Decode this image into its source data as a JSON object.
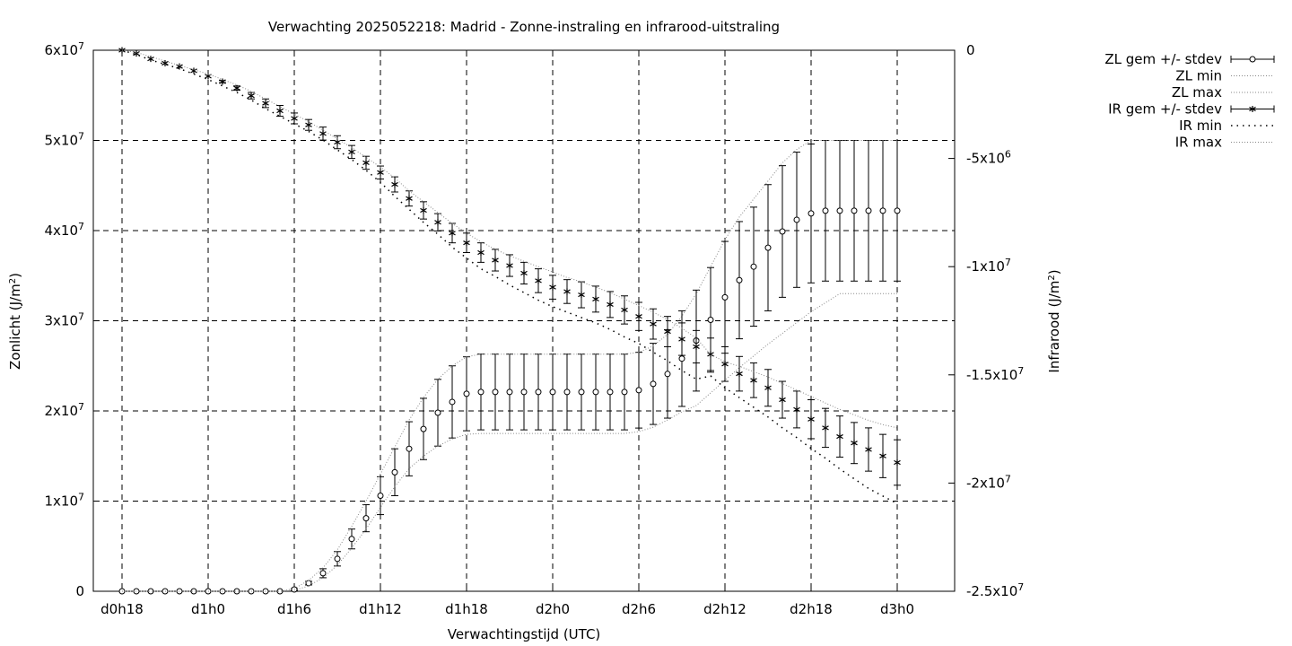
{
  "chart_data": {
    "type": "line",
    "title": "Verwachting 2025052218: Madrid - Zonne-instraling en infrarood-uitstraling",
    "xlabel": "Verwachtingstijd (UTC)",
    "ylabel_left_base": "Zonlicht (J/m",
    "ylabel_left_sup": "2",
    "ylabel_left_end": ")",
    "ylabel_right_base": "Infrarood (J/m",
    "ylabel_right_sup": "2",
    "ylabel_right_end": ")",
    "x_range_hours": [
      -2,
      58
    ],
    "x_ticks": [
      {
        "value": 0,
        "label": "d0h18"
      },
      {
        "value": 6,
        "label": "d1h0"
      },
      {
        "value": 12,
        "label": "d1h6"
      },
      {
        "value": 18,
        "label": "d1h12"
      },
      {
        "value": 24,
        "label": "d1h18"
      },
      {
        "value": 30,
        "label": "d2h0"
      },
      {
        "value": 36,
        "label": "d2h6"
      },
      {
        "value": 42,
        "label": "d2h12"
      },
      {
        "value": 48,
        "label": "d2h18"
      },
      {
        "value": 54,
        "label": "d3h0"
      }
    ],
    "y_left_range": [
      0,
      60000000
    ],
    "y_left_ticks": [
      {
        "value": 0,
        "base": "0",
        "exp": ""
      },
      {
        "value": 10000000,
        "base": "1x10",
        "exp": "7"
      },
      {
        "value": 20000000,
        "base": "2x10",
        "exp": "7"
      },
      {
        "value": 30000000,
        "base": "3x10",
        "exp": "7"
      },
      {
        "value": 40000000,
        "base": "4x10",
        "exp": "7"
      },
      {
        "value": 50000000,
        "base": "5x10",
        "exp": "7"
      },
      {
        "value": 60000000,
        "base": "6x10",
        "exp": "7"
      }
    ],
    "y_right_range": [
      -25000000,
      0
    ],
    "y_right_ticks": [
      {
        "value": 0,
        "base": "0",
        "exp": ""
      },
      {
        "value": -5000000,
        "base": "-5x10",
        "exp": "6"
      },
      {
        "value": -10000000,
        "base": "-1x10",
        "exp": "7"
      },
      {
        "value": -15000000,
        "base": "-1.5x10",
        "exp": "7"
      },
      {
        "value": -20000000,
        "base": "-2x10",
        "exp": "7"
      },
      {
        "value": -25000000,
        "base": "-2.5x10",
        "exp": "7"
      }
    ],
    "grid": true,
    "legend_position": "outside-top-right",
    "x_hours": [
      0,
      1,
      2,
      3,
      4,
      5,
      6,
      7,
      8,
      9,
      10,
      11,
      12,
      13,
      14,
      15,
      16,
      17,
      18,
      19,
      20,
      21,
      22,
      23,
      24,
      25,
      26,
      27,
      28,
      29,
      30,
      31,
      32,
      33,
      34,
      35,
      36,
      37,
      38,
      39,
      40,
      41,
      42,
      43,
      44,
      45,
      46,
      47,
      48,
      49,
      50,
      51,
      52,
      53,
      54
    ],
    "series": [
      {
        "name": "ZL gem +/- stdev",
        "axis": "left",
        "marker": "circle",
        "mean": [
          0,
          0,
          0,
          0,
          0,
          0,
          0,
          0,
          0,
          0,
          0,
          0,
          200000.0,
          900000.0,
          2000000.0,
          3600000.0,
          5800000.0,
          8100000.0,
          10600000.0,
          13200000.0,
          15800000.0,
          18000000.0,
          19800000.0,
          21000000.0,
          21900000.0,
          22100000.0,
          22100000.0,
          22100000.0,
          22100000.0,
          22100000.0,
          22100000.0,
          22100000.0,
          22100000.0,
          22100000.0,
          22100000.0,
          22100000.0,
          22300000.0,
          23000000.0,
          24100000.0,
          25800000.0,
          27800000.0,
          30100000.0,
          32600000.0,
          34500000.0,
          36000000.0,
          38100000.0,
          39900000.0,
          41200000.0,
          41900000.0,
          42200000.0,
          42200000.0,
          42200000.0,
          42200000.0,
          42200000.0,
          42200000.0
        ],
        "stdev": [
          0,
          0,
          0,
          0,
          0,
          0,
          0,
          0,
          0,
          0,
          0,
          0,
          100000.0,
          200000.0,
          500000.0,
          800000.0,
          1100000.0,
          1500000.0,
          2100000.0,
          2600000.0,
          3000000.0,
          3400000.0,
          3700000.0,
          4000000.0,
          4100000.0,
          4200000.0,
          4200000.0,
          4200000.0,
          4200000.0,
          4200000.0,
          4200000.0,
          4200000.0,
          4200000.0,
          4200000.0,
          4200000.0,
          4200000.0,
          4200000.0,
          4500000.0,
          4900000.0,
          5300000.0,
          5600000.0,
          5800000.0,
          6200000.0,
          6500000.0,
          6600000.0,
          7000000.0,
          7300000.0,
          7500000.0,
          7700000.0,
          7800000.0,
          7800000.0,
          7800000.0,
          7800000.0,
          7800000.0,
          7800000.0
        ]
      },
      {
        "name": "ZL min",
        "axis": "left",
        "style": "dotted-fine",
        "values": [
          0,
          0,
          0,
          0,
          0,
          0,
          0,
          0,
          0,
          0,
          0,
          0,
          100000.0,
          600000.0,
          1500000.0,
          2900000.0,
          4800000.0,
          6900000.0,
          9300000.0,
          11600000.0,
          13600000.0,
          15000000.0,
          16100000.0,
          16900000.0,
          17400000.0,
          17500000.0,
          17500000.0,
          17500000.0,
          17500000.0,
          17500000.0,
          17500000.0,
          17500000.0,
          17500000.0,
          17500000.0,
          17500000.0,
          17500000.0,
          17700000.0,
          18200000.0,
          19000000.0,
          19900000.0,
          20600000.0,
          22000000.0,
          23400000.0,
          24800000.0,
          26100000.0,
          27400000.0,
          28600000.0,
          29800000.0,
          31000000.0,
          32000000.0,
          33000000.0,
          33000000.0,
          33000000.0,
          33000000.0,
          33000000.0
        ]
      },
      {
        "name": "ZL max",
        "axis": "left",
        "style": "dotted-fine",
        "values": [
          0,
          0,
          0,
          0,
          0,
          0,
          0,
          0,
          0,
          0,
          0,
          0,
          300000.0,
          1200000.0,
          2600000.0,
          4600000.0,
          7200000.0,
          10000000.0,
          13000000.0,
          16000000.0,
          19000000.0,
          21500000.0,
          23500000.0,
          25000000.0,
          26000000.0,
          26300000.0,
          26300000.0,
          26300000.0,
          26300000.0,
          26300000.0,
          26300000.0,
          26300000.0,
          26300000.0,
          26300000.0,
          26300000.0,
          26300000.0,
          26500000.0,
          27200000.0,
          28500000.0,
          30500000.0,
          33000000.0,
          36000000.0,
          39000000.0,
          41500000.0,
          43500000.0,
          45500000.0,
          47500000.0,
          49000000.0,
          50000000.0,
          50000000.0,
          50000000.0,
          50000000.0,
          50000000.0,
          50000000.0,
          50000000.0
        ]
      },
      {
        "name": "IR gem +/- stdev",
        "axis": "right",
        "marker": "star",
        "mean": [
          0,
          -150000.0,
          -400000.0,
          -600000.0,
          -750000.0,
          -950000.0,
          -1200000.0,
          -1450000.0,
          -1750000.0,
          -2100000.0,
          -2450000.0,
          -2800000.0,
          -3150000.0,
          -3450000.0,
          -3850000.0,
          -4250000.0,
          -4700000.0,
          -5200000.0,
          -5650000.0,
          -6200000.0,
          -6850000.0,
          -7400000.0,
          -7950000.0,
          -8450000.0,
          -8900000.0,
          -9350000.0,
          -9700000.0,
          -9950000.0,
          -10300000.0,
          -10650000.0,
          -10950000.0,
          -11150000.0,
          -11300000.0,
          -11500000.0,
          -11750000.0,
          -12000000.0,
          -12300000.0,
          -12650000.0,
          -13000000.0,
          -13350000.0,
          -13700000.0,
          -14050000.0,
          -14500000.0,
          -14950000.0,
          -15250000.0,
          -15600000.0,
          -16150000.0,
          -16600000.0,
          -17050000.0,
          -17450000.0,
          -17850000.0,
          -18150000.0,
          -18450000.0,
          -18750000.0,
          -19050000.0
        ],
        "stdev": [
          0,
          0,
          0,
          0,
          0,
          0,
          0,
          50000.0,
          100000.0,
          150000.0,
          200000.0,
          250000.0,
          250000.0,
          250000.0,
          300000.0,
          300000.0,
          300000.0,
          300000.0,
          300000.0,
          350000.0,
          350000.0,
          400000.0,
          400000.0,
          450000.0,
          450000.0,
          450000.0,
          500000.0,
          500000.0,
          500000.0,
          550000.0,
          550000.0,
          550000.0,
          600000.0,
          600000.0,
          600000.0,
          650000.0,
          650000.0,
          700000.0,
          700000.0,
          750000.0,
          750000.0,
          750000.0,
          800000.0,
          800000.0,
          800000.0,
          850000.0,
          850000.0,
          850000.0,
          900000.0,
          900000.0,
          950000.0,
          950000.0,
          1000000.0,
          1000000.0,
          1050000.0
        ]
      },
      {
        "name": "IR min",
        "axis": "right",
        "style": "dotted-coarse",
        "values": [
          0,
          -200000.0,
          -450000.0,
          -650000.0,
          -850000.0,
          -1100000.0,
          -1350000.0,
          -1650000.0,
          -1950000.0,
          -2300000.0,
          -2700000.0,
          -3050000.0,
          -3400000.0,
          -3750000.0,
          -4150000.0,
          -4600000.0,
          -5050000.0,
          -5550000.0,
          -6100000.0,
          -6750000.0,
          -7350000.0,
          -7950000.0,
          -8500000.0,
          -9100000.0,
          -9600000.0,
          -10100000.0,
          -10450000.0,
          -10850000.0,
          -11200000.0,
          -11550000.0,
          -11850000.0,
          -12100000.0,
          -12350000.0,
          -12600000.0,
          -12900000.0,
          -13250000.0,
          -13550000.0,
          -13950000.0,
          -14350000.0,
          -14800000.0,
          -15200000.0,
          -15050000.0,
          -15600000.0,
          -16050000.0,
          -16500000.0,
          -16950000.0,
          -17450000.0,
          -17900000.0,
          -18400000.0,
          -18850000.0,
          -19350000.0,
          -19800000.0,
          -20250000.0,
          -20600000.0,
          -20950000.0
        ]
      },
      {
        "name": "IR max",
        "axis": "right",
        "style": "dotted-fine",
        "values": [
          0,
          -100000.0,
          -300000.0,
          -500000.0,
          -700000.0,
          -900000.0,
          -1100000.0,
          -1350000.0,
          -1600000.0,
          -1900000.0,
          -2250000.0,
          -2600000.0,
          -2950000.0,
          -3300000.0,
          -3700000.0,
          -4100000.0,
          -4500000.0,
          -4950000.0,
          -5400000.0,
          -5900000.0,
          -6500000.0,
          -7000000.0,
          -7500000.0,
          -8000000.0,
          -8450000.0,
          -8850000.0,
          -9200000.0,
          -9500000.0,
          -9750000.0,
          -10000000.0,
          -10250000.0,
          -10500000.0,
          -10700000.0,
          -10950000.0,
          -11200000.0,
          -11500000.0,
          -11800000.0,
          -12100000.0,
          -12450000.0,
          -12850000.0,
          -13300000.0,
          -14050000.0,
          -14400000.0,
          -14600000.0,
          -14850000.0,
          -15100000.0,
          -15400000.0,
          -15700000.0,
          -16000000.0,
          -16300000.0,
          -16600000.0,
          -16850000.0,
          -17100000.0,
          -17300000.0,
          -17450000.0
        ]
      }
    ]
  }
}
